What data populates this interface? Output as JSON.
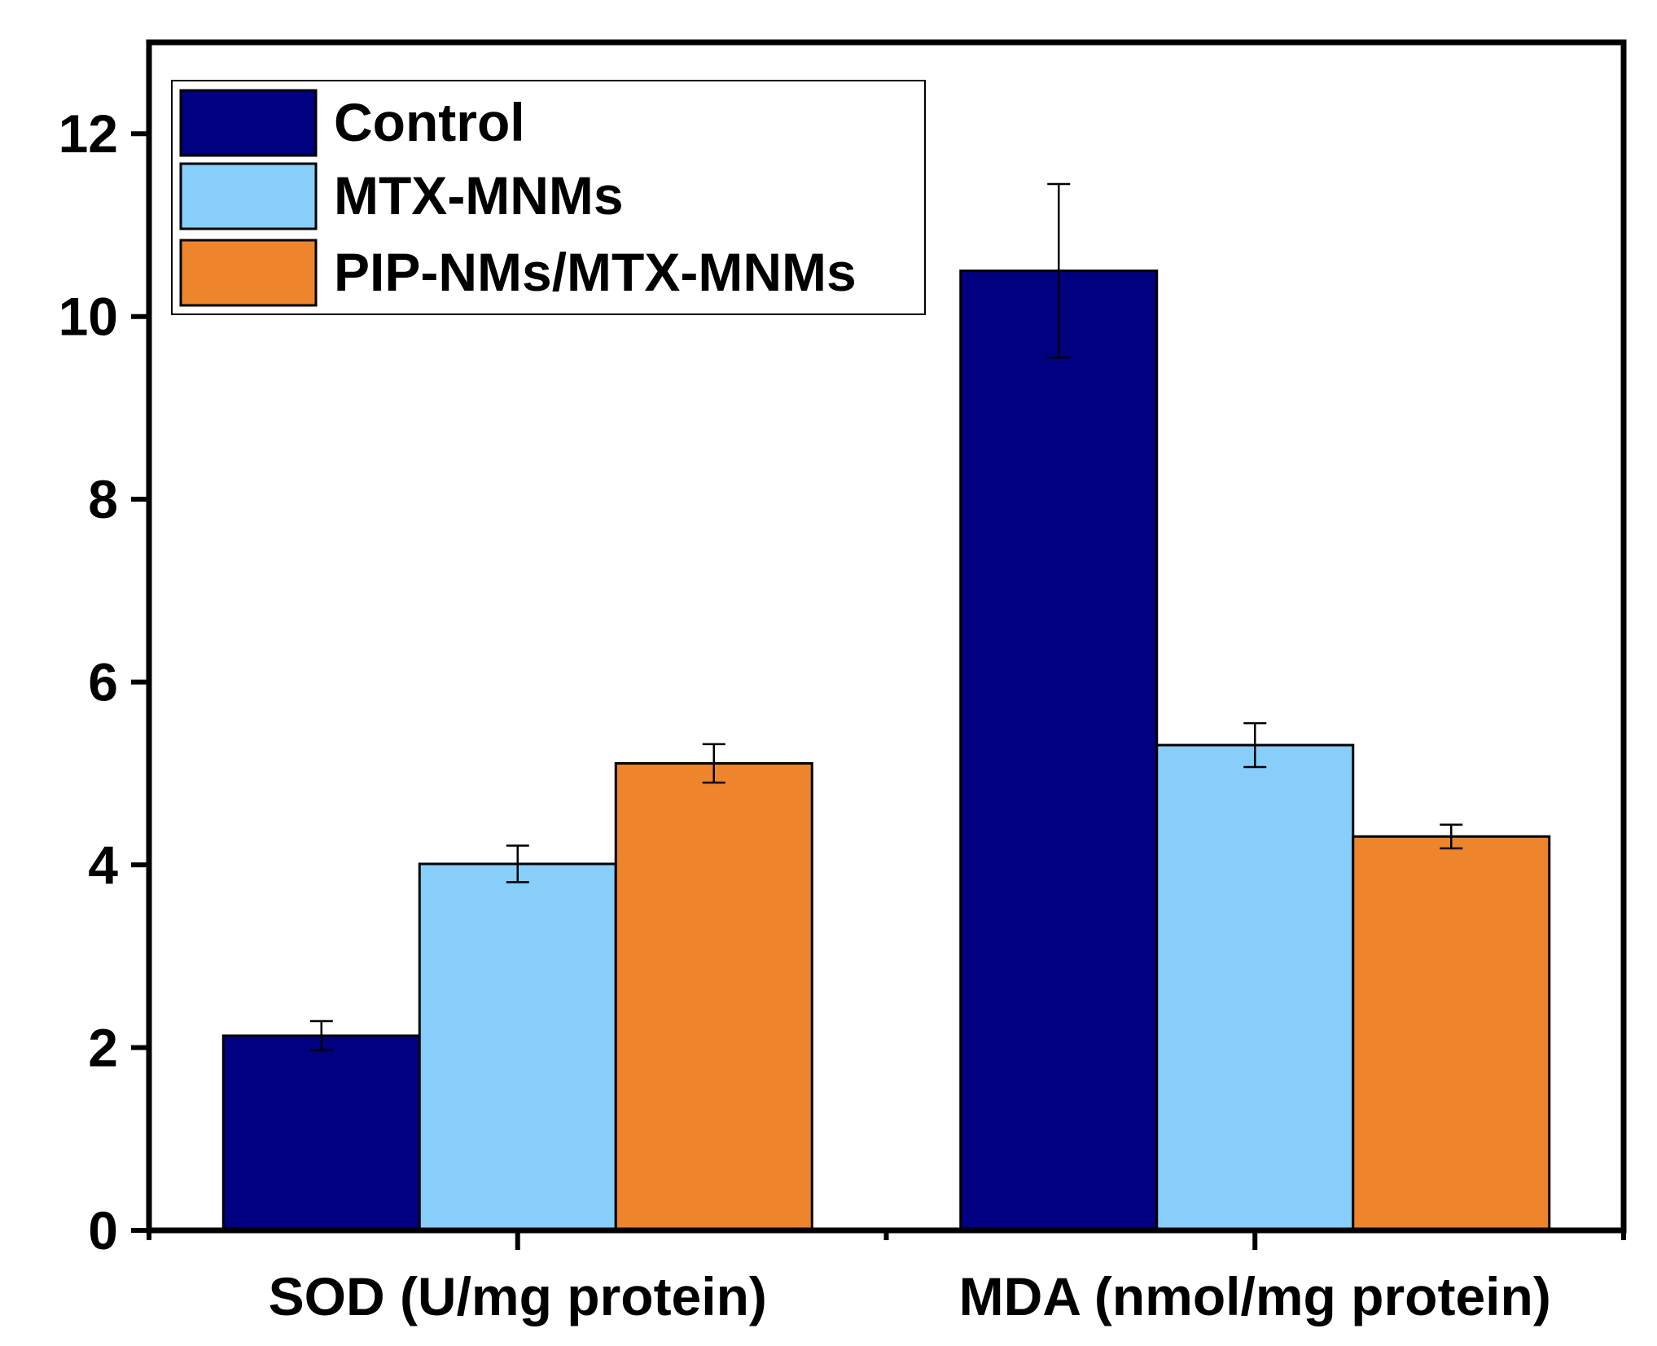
{
  "chart_data": {
    "type": "bar",
    "title": "",
    "xlabel": "",
    "ylabel": "",
    "ylim": [
      0,
      13
    ],
    "yticks": [
      0,
      2,
      4,
      6,
      8,
      10,
      12
    ],
    "grid": false,
    "legend_position": "top-left",
    "categories": [
      "SOD (U/mg protein)",
      "MDA (nmol/mg protein)"
    ],
    "series": [
      {
        "name": "Control",
        "color": "#000080",
        "values": [
          2.13,
          10.5
        ],
        "errors": [
          0.16,
          0.95
        ]
      },
      {
        "name": "MTX-MNMs",
        "color": "#87CEFA",
        "values": [
          4.01,
          5.31
        ],
        "errors": [
          0.2,
          0.24
        ]
      },
      {
        "name": "PIP-NMs/MTX-MNMs",
        "color": "#EE842C",
        "values": [
          5.11,
          4.31
        ],
        "errors": [
          0.21,
          0.13
        ]
      }
    ]
  }
}
